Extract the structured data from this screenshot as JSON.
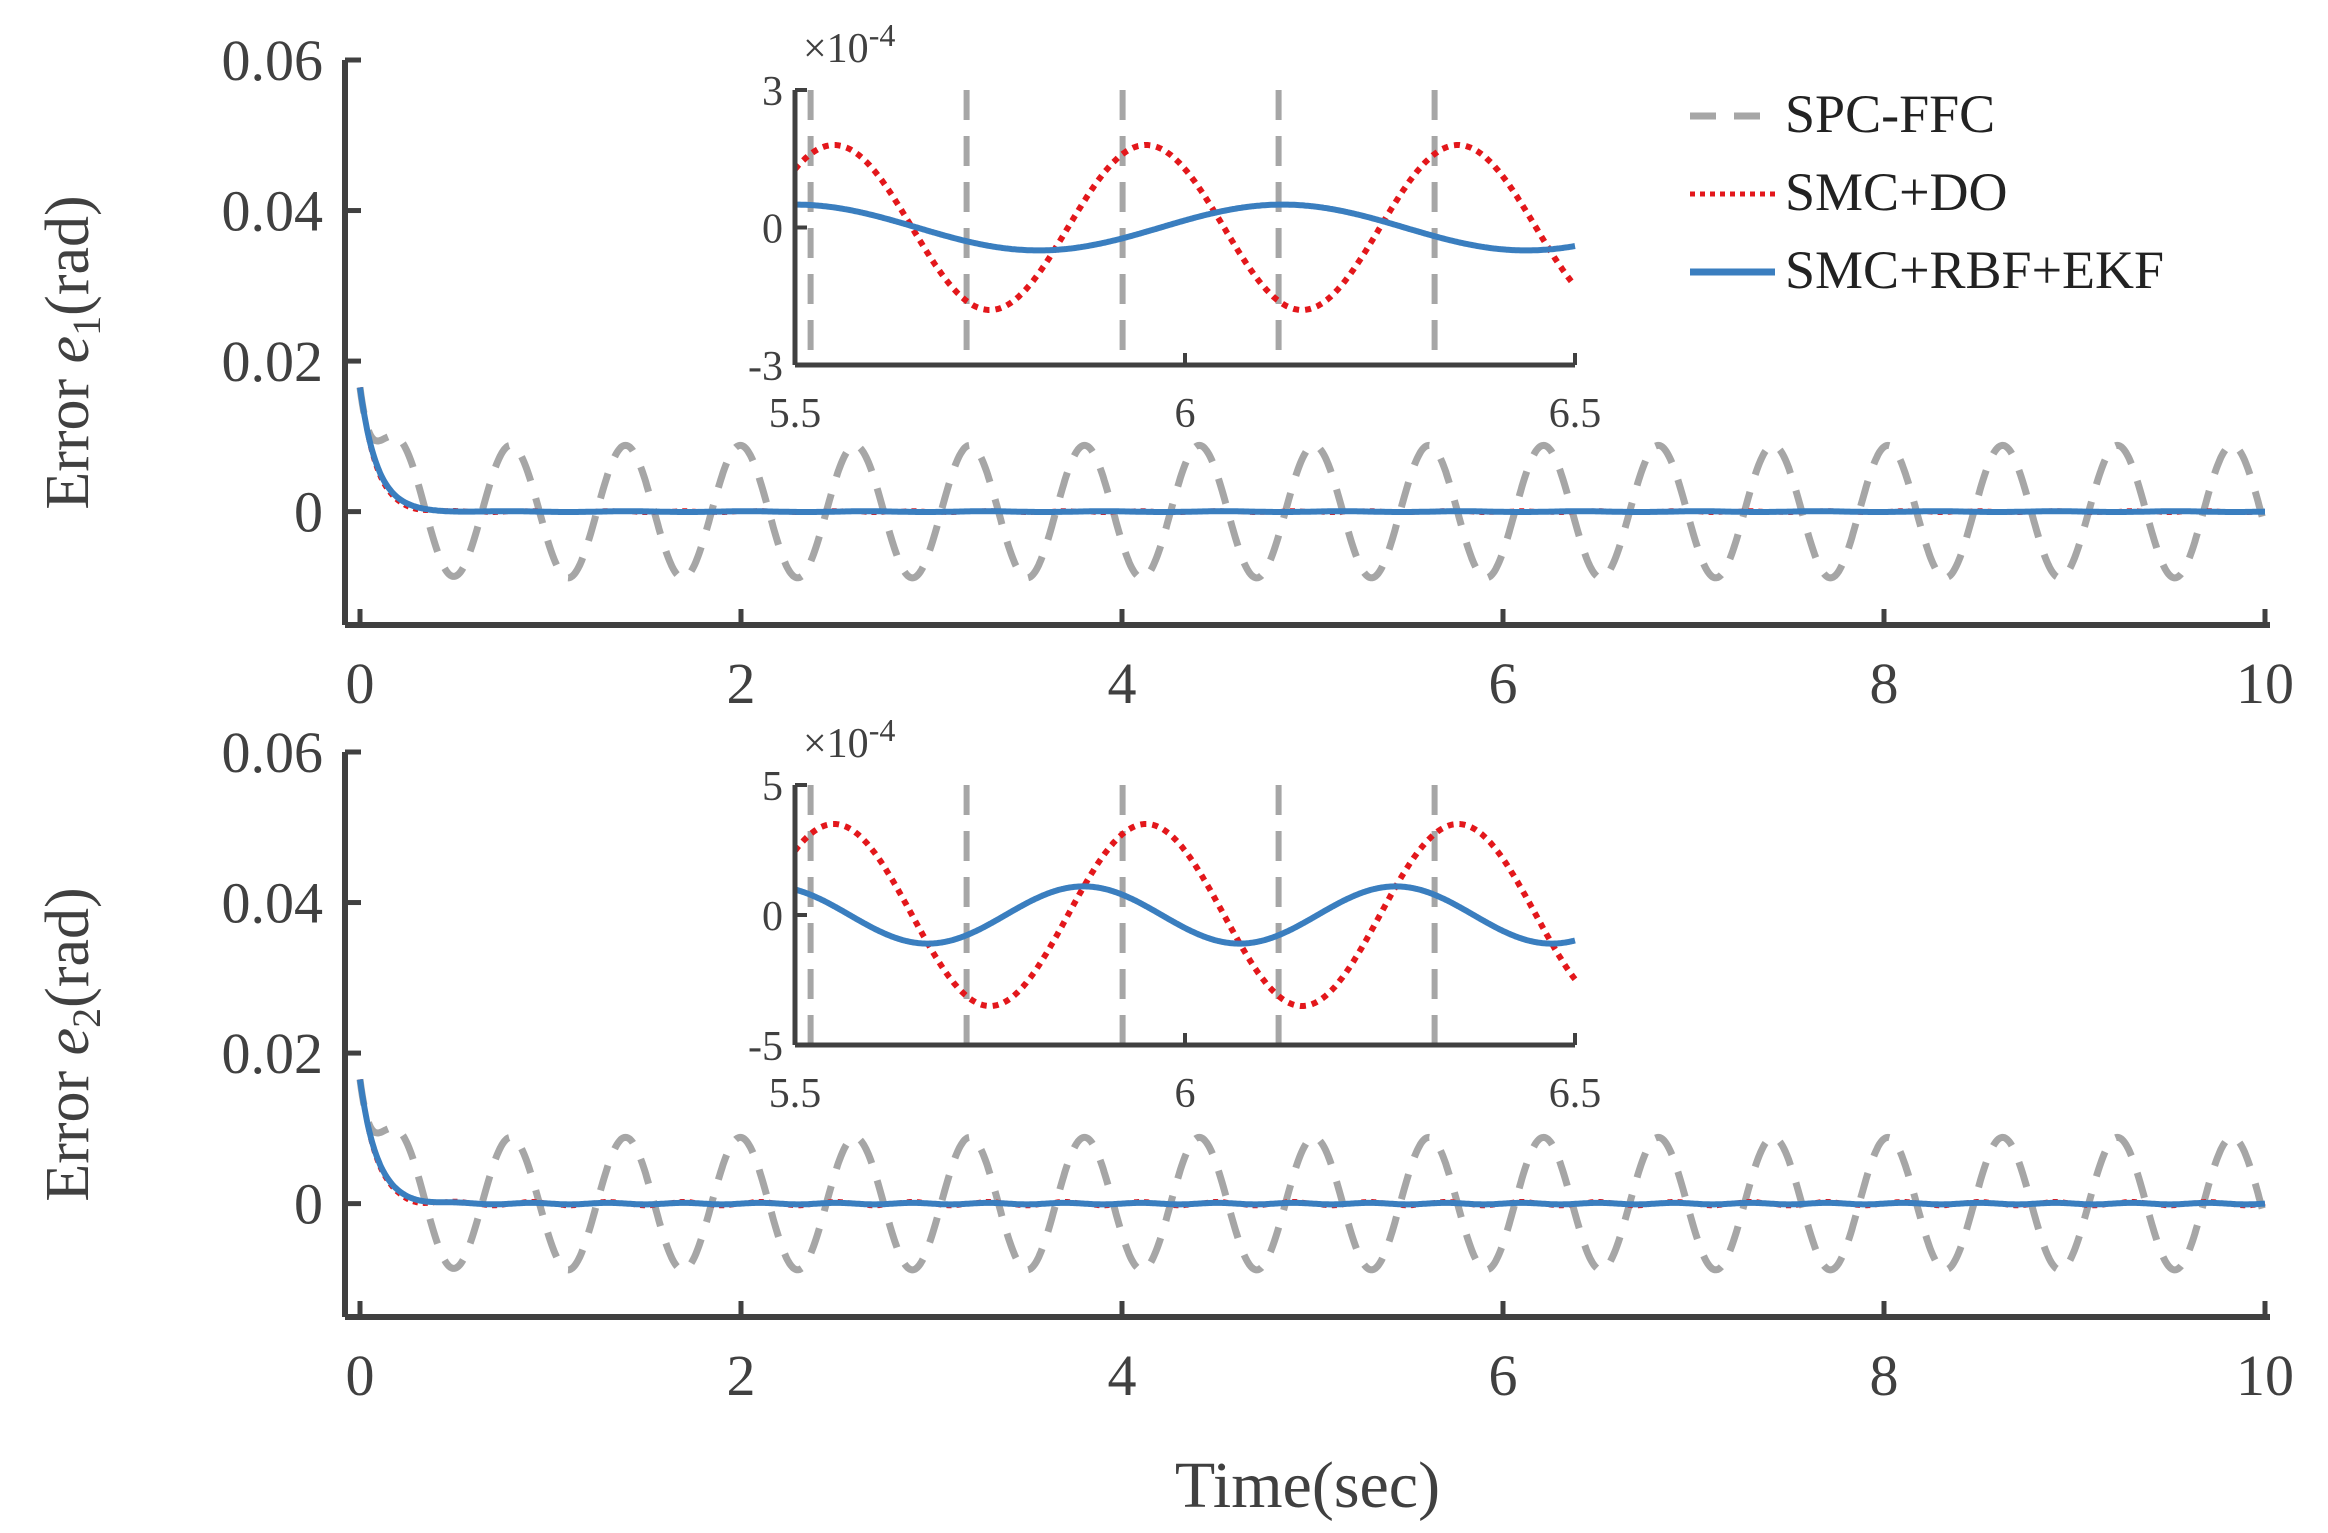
{
  "legend": {
    "position": "top-right",
    "entries": [
      {
        "label": "SPC-FFC",
        "color": "#a6a6a6",
        "style": "dashed"
      },
      {
        "label": "SMC+DO",
        "color": "#e3171b",
        "style": "dotted"
      },
      {
        "label": "SMC+RBF+EKF",
        "color": "#3a7ebf",
        "style": "solid"
      }
    ]
  },
  "chart_data": [
    {
      "type": "line",
      "title": "",
      "xlabel": "",
      "ylabel_prefix": "Error ",
      "ylabel_var": "e",
      "ylabel_sub": "1",
      "ylabel_suffix": "(rad)",
      "xlim": [
        0,
        10
      ],
      "ylim": [
        -0.014,
        0.06
      ],
      "xticks": [
        0,
        2,
        4,
        6,
        8,
        10
      ],
      "xtick_labels": [
        "0",
        "2",
        "4",
        "6",
        "8",
        "10"
      ],
      "yticks": [
        0,
        0.02,
        0.04,
        0.06
      ],
      "ytick_labels": [
        "0",
        "0.02",
        "0.04",
        "0.06"
      ],
      "series": [
        {
          "name": "SPC-FFC",
          "initial": 0.0165,
          "amplitude": 0.0088,
          "frequency_hz": 1.66,
          "settle_time": 0.1
        },
        {
          "name": "SMC+DO",
          "initial": 0.0165,
          "amplitude": 0.00018,
          "frequency_hz": 2.5,
          "settle_time": 0.08
        },
        {
          "name": "SMC+RBF+EKF",
          "initial": 0.0165,
          "amplitude": 5e-05,
          "frequency_hz": 1.6,
          "settle_time": 0.09
        }
      ],
      "inset": {
        "xlim": [
          5.5,
          6.5
        ],
        "ylim": [
          -3,
          3
        ],
        "xticks": [
          5.5,
          6,
          6.5
        ],
        "xtick_labels": [
          "5.5",
          "6",
          "6.5"
        ],
        "yticks": [
          -3,
          0,
          3
        ],
        "ytick_labels": [
          "-3",
          "0",
          "3"
        ],
        "multiplier_base": "×10",
        "multiplier_exp": "-4",
        "spc_dash_x": [
          5.52,
          5.72,
          5.92,
          6.12,
          6.32
        ],
        "series": [
          {
            "name": "SMC+DO",
            "amplitude": 1.8,
            "frequency_hz": 2.5,
            "phase_peak_x": 5.55
          },
          {
            "name": "SMC+RBF+EKF",
            "amplitude": 0.5,
            "frequency_hz": 1.6,
            "phase_peak_x": 5.5
          }
        ]
      }
    },
    {
      "type": "line",
      "title": "",
      "xlabel": "Time(sec)",
      "ylabel_prefix": "Error ",
      "ylabel_var": "e",
      "ylabel_sub": "2",
      "ylabel_suffix": "(rad)",
      "xlim": [
        0,
        10
      ],
      "ylim": [
        -0.014,
        0.06
      ],
      "xticks": [
        0,
        2,
        4,
        6,
        8,
        10
      ],
      "xtick_labels": [
        "0",
        "2",
        "4",
        "6",
        "8",
        "10"
      ],
      "yticks": [
        0,
        0.02,
        0.04,
        0.06
      ],
      "ytick_labels": [
        "0",
        "0.02",
        "0.04",
        "0.06"
      ],
      "series": [
        {
          "name": "SPC-FFC",
          "initial": 0.0165,
          "amplitude": 0.0088,
          "frequency_hz": 1.66,
          "settle_time": 0.1
        },
        {
          "name": "SMC+DO",
          "initial": 0.0165,
          "amplitude": 0.00035,
          "frequency_hz": 2.5,
          "settle_time": 0.08
        },
        {
          "name": "SMC+RBF+EKF",
          "initial": 0.0165,
          "amplitude": 0.0001,
          "frequency_hz": 2.5,
          "settle_time": 0.09
        }
      ],
      "inset": {
        "xlim": [
          5.5,
          6.5
        ],
        "ylim": [
          -5,
          5
        ],
        "xticks": [
          5.5,
          6,
          6.5
        ],
        "xtick_labels": [
          "5.5",
          "6",
          "6.5"
        ],
        "yticks": [
          -5,
          0,
          5
        ],
        "ytick_labels": [
          "-5",
          "0",
          "5"
        ],
        "multiplier_base": "×10",
        "multiplier_exp": "-4",
        "spc_dash_x": [
          5.52,
          5.72,
          5.92,
          6.12,
          6.32
        ],
        "series": [
          {
            "name": "SMC+DO",
            "amplitude": 3.5,
            "frequency_hz": 2.5,
            "phase_peak_x": 5.55
          },
          {
            "name": "SMC+RBF+EKF",
            "amplitude": 1.1,
            "frequency_hz": 2.5,
            "phase_peak_x": 5.87
          }
        ]
      }
    }
  ]
}
